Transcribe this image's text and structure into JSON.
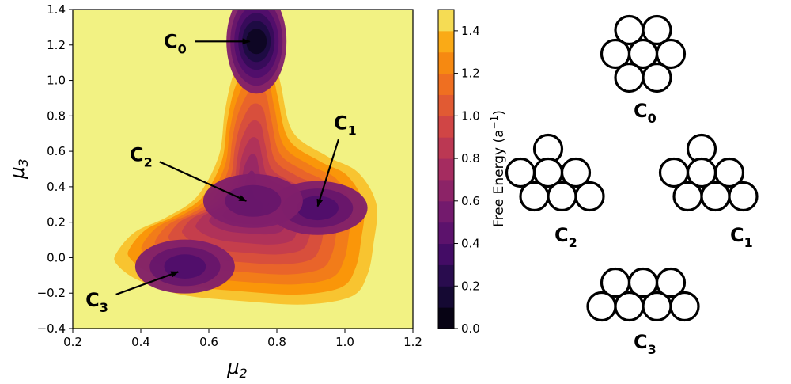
{
  "chart_data": {
    "type": "contour",
    "xlabel": "μ",
    "xlabel_sub": "2",
    "ylabel": "μ",
    "ylabel_sub": "3",
    "xlim": [
      0.2,
      1.2
    ],
    "ylim": [
      -0.4,
      1.4
    ],
    "xticks": [
      "0.2",
      "0.4",
      "0.6",
      "0.8",
      "1.0",
      "1.2"
    ],
    "yticks": [
      "−0.4",
      "−0.2",
      "0.0",
      "0.2",
      "0.4",
      "0.6",
      "0.8",
      "1.0",
      "1.2",
      "1.4"
    ],
    "colorbar": {
      "label": "Free Energy (a",
      "label_sup": "−1",
      "label_end": ")",
      "range": [
        0.0,
        1.5
      ],
      "ticks": [
        "0.0",
        "0.2",
        "0.4",
        "0.6",
        "0.8",
        "1.0",
        "1.2",
        "1.4"
      ],
      "levels": 15,
      "colormap": "inferno"
    },
    "background_color": "#f2f283",
    "minima": [
      {
        "label": "C",
        "sub": "0",
        "x": 0.74,
        "y": 1.22,
        "depth": 0.05
      },
      {
        "label": "C",
        "sub": "1",
        "x": 0.92,
        "y": 0.28,
        "depth": 0.42
      },
      {
        "label": "C",
        "sub": "2",
        "x": 0.73,
        "y": 0.32,
        "depth": 0.45
      },
      {
        "label": "C",
        "sub": "3",
        "x": 0.53,
        "y": -0.05,
        "depth": 0.4
      }
    ],
    "annotations": [
      {
        "label": "C",
        "sub": "0",
        "text_at": [
          0.5,
          1.22
        ],
        "arrow_to": [
          0.72,
          1.22
        ]
      },
      {
        "label": "C",
        "sub": "1",
        "text_at": [
          1.0,
          0.76
        ],
        "arrow_to": [
          0.92,
          0.29
        ]
      },
      {
        "label": "C",
        "sub": "2",
        "text_at": [
          0.4,
          0.58
        ],
        "arrow_to": [
          0.71,
          0.32
        ]
      },
      {
        "label": "C",
        "sub": "3",
        "text_at": [
          0.27,
          -0.24
        ],
        "arrow_to": [
          0.51,
          -0.08
        ]
      }
    ]
  },
  "configurations": [
    {
      "label": "C",
      "sub": "0",
      "rows": [
        2,
        3,
        2
      ]
    },
    {
      "label": "C",
      "sub": "2",
      "rows": [
        1,
        3,
        3
      ]
    },
    {
      "label": "C",
      "sub": "1",
      "rows": [
        1,
        3,
        3
      ]
    },
    {
      "label": "C",
      "sub": "3",
      "rows": [
        3,
        4
      ]
    }
  ]
}
